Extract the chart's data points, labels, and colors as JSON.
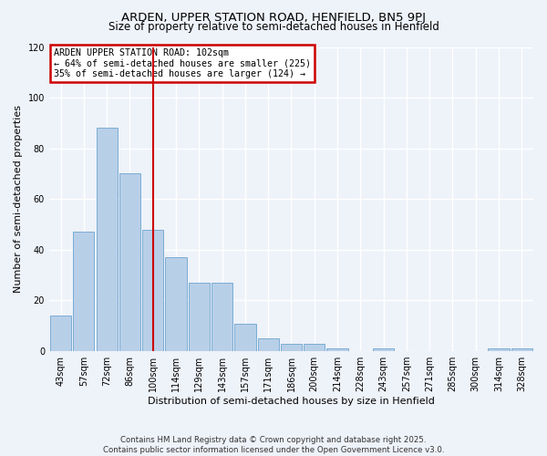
{
  "title": "ARDEN, UPPER STATION ROAD, HENFIELD, BN5 9PJ",
  "subtitle": "Size of property relative to semi-detached houses in Henfield",
  "xlabel": "Distribution of semi-detached houses by size in Henfield",
  "ylabel": "Number of semi-detached properties",
  "categories": [
    "43sqm",
    "57sqm",
    "72sqm",
    "86sqm",
    "100sqm",
    "114sqm",
    "129sqm",
    "143sqm",
    "157sqm",
    "171sqm",
    "186sqm",
    "200sqm",
    "214sqm",
    "228sqm",
    "243sqm",
    "257sqm",
    "271sqm",
    "285sqm",
    "300sqm",
    "314sqm",
    "328sqm"
  ],
  "values": [
    14,
    47,
    88,
    70,
    48,
    37,
    27,
    27,
    11,
    5,
    3,
    3,
    1,
    0,
    1,
    0,
    0,
    0,
    0,
    1,
    1
  ],
  "bar_color": "#b8cfe8",
  "bar_edge_color": "#7aadd4",
  "vline_x_index": 4,
  "vline_color": "#cc0000",
  "annotation_box_color": "#cc0000",
  "annotation_line1": "ARDEN UPPER STATION ROAD: 102sqm",
  "annotation_line2": "← 64% of semi-detached houses are smaller (225)",
  "annotation_line3": "35% of semi-detached houses are larger (124) →",
  "ylim": [
    0,
    120
  ],
  "yticks": [
    0,
    20,
    40,
    60,
    80,
    100,
    120
  ],
  "fig_bg_color": "#eef2f9",
  "axes_bg_color": "#eef2f9",
  "grid_color": "#ffffff",
  "footer1": "Contains HM Land Registry data © Crown copyright and database right 2025.",
  "footer2": "Contains public sector information licensed under the Open Government Licence v3.0."
}
